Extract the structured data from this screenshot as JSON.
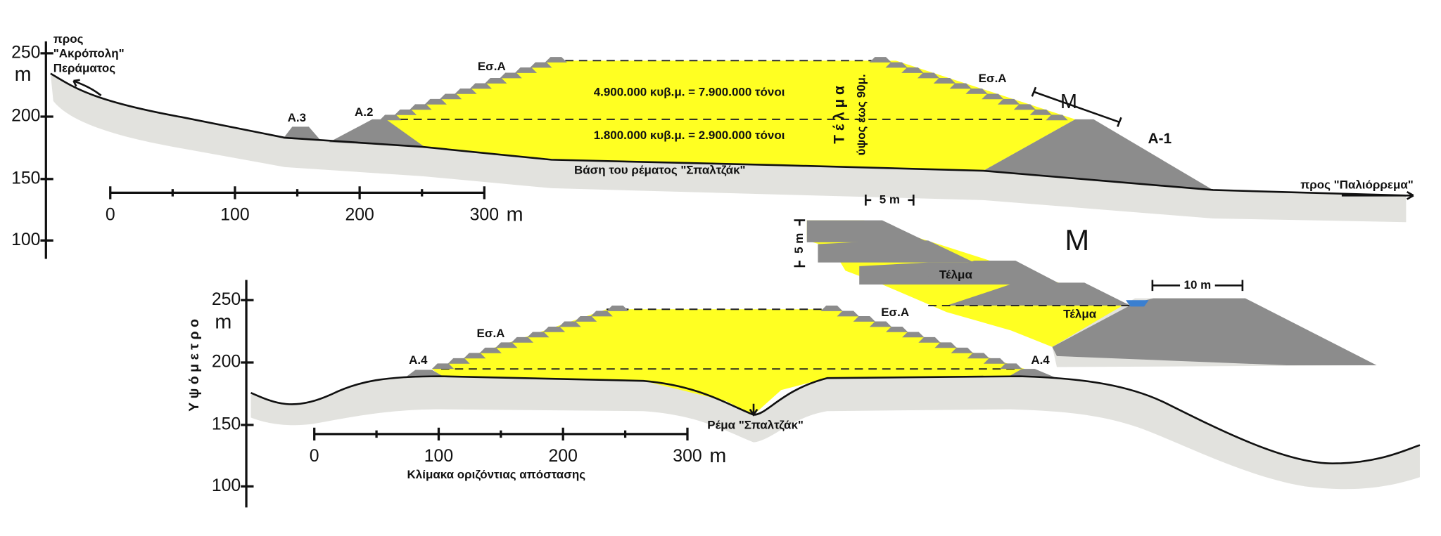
{
  "upper_section": {
    "y_axis": {
      "unit": "m",
      "ticks": [
        "250",
        "200",
        "150",
        "100"
      ]
    },
    "direction_left": [
      "προς",
      "\"Ακρόπολη\"",
      "Περάματος"
    ],
    "direction_right": "προς \"Παλιόρρεμα\"",
    "labels": {
      "es_a_left": "Εσ.Α",
      "es_a_right": "Εσ.Α",
      "a3": "A.3",
      "a2": "A.2",
      "a1": "A-1",
      "m": "M"
    },
    "upper_volume": "4.900.000 κυβ.μ. = 7.900.000 τόνοι",
    "lower_volume": "1.800.000 κυβ.μ. = 2.900.000 τόνοι",
    "telma": "Τ έ λ μ α",
    "height_note": "ύψος έως 90μ.",
    "base": "Βάση του ρέματος \"Σπαλτζάκ\"",
    "scale": {
      "ticks": [
        "0",
        "100",
        "200",
        "300"
      ],
      "unit": "m"
    }
  },
  "detail": {
    "title": "M",
    "step_width": "5 m",
    "step_height": "5 m",
    "telma_1": "Τέλμα",
    "telma_2": "Τέλμα",
    "crest_width": "10 m"
  },
  "lower_section": {
    "y_axis": {
      "title": "Υ ψ ό μ ε τ ρ ο",
      "unit": "m",
      "ticks": [
        "250",
        "200",
        "150",
        "100"
      ]
    },
    "labels": {
      "es_a_left": "Εσ.Α",
      "es_a_right": "Εσ.Α",
      "a4_left": "A.4",
      "a4_right": "A.4"
    },
    "stream": "Ρέμα \"Σπαλτζάκ\"",
    "scale": {
      "ticks": [
        "0",
        "100",
        "200",
        "300"
      ],
      "unit": "m",
      "caption": "Κλίμακα οριζόντιας απόστασης"
    }
  }
}
